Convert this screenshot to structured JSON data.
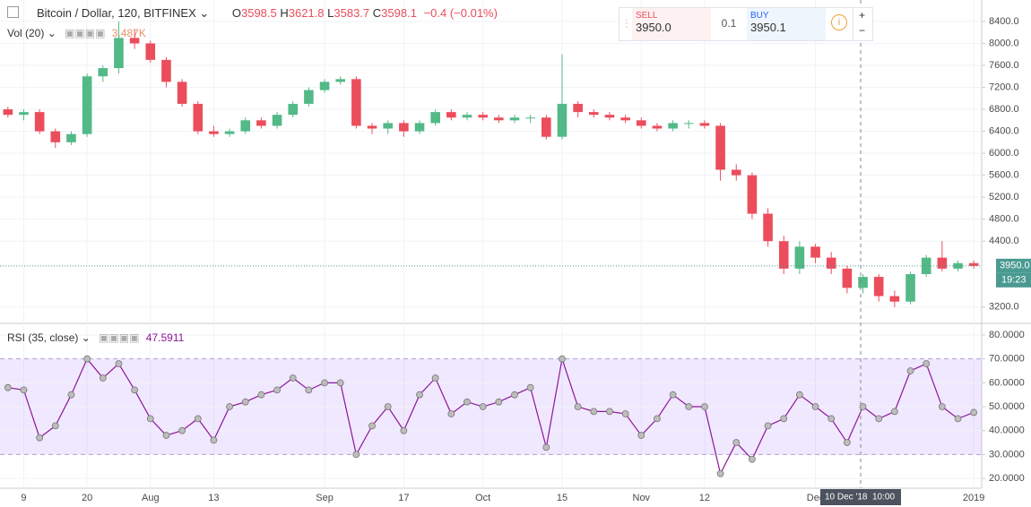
{
  "header": {
    "symbol": "Bitcoin / Dollar, 120, BITFINEX",
    "volume_label": "Vol (20)",
    "volume_value": "3.487K",
    "ohlc": [
      {
        "key": "O",
        "value": "3598.5"
      },
      {
        "key": "H",
        "value": "3621.8"
      },
      {
        "key": "L",
        "value": "3583.7"
      },
      {
        "key": "C",
        "value": "3598.1"
      }
    ],
    "change": "−0.4 (−0.01%)"
  },
  "trade_panel": {
    "sell_label": "SELL",
    "sell_price": "3950.0",
    "quantity": "0.1",
    "buy_label": "BUY",
    "buy_price": "3950.1"
  },
  "crosshair": {
    "date": "10 Dec '18",
    "time": "10:00"
  },
  "chart_data": [
    {
      "type": "candlestick",
      "up_color": "#53b987",
      "down_color": "#eb4d5c",
      "categories": [
        null,
        "9",
        null,
        null,
        null,
        "20",
        null,
        null,
        null,
        "Aug",
        null,
        null,
        null,
        "13",
        null,
        null,
        null,
        null,
        null,
        null,
        "Sep",
        null,
        null,
        null,
        null,
        "17",
        null,
        null,
        null,
        null,
        "Oct",
        null,
        null,
        null,
        null,
        "15",
        null,
        null,
        null,
        null,
        "Nov",
        null,
        null,
        null,
        "12",
        null,
        null,
        null,
        null,
        null,
        null,
        "Dec",
        null,
        null,
        null,
        null,
        null,
        null,
        null,
        null,
        null,
        "2019"
      ],
      "open": [
        6800,
        6700,
        6750,
        6400,
        6200,
        6350,
        7400,
        7550,
        8100,
        8000,
        7700,
        7300,
        6900,
        6400,
        6350,
        6400,
        6600,
        6500,
        6700,
        6900,
        7150,
        7300,
        7350,
        6500,
        6450,
        6550,
        6400,
        6550,
        6750,
        6650,
        6700,
        6650,
        6600,
        6650,
        6650,
        6300,
        6900,
        6750,
        6700,
        6650,
        6600,
        6500,
        6450,
        6550,
        6550,
        6500,
        5700,
        5600,
        4900,
        4400,
        3900,
        4300,
        4100,
        3900,
        3550,
        3750,
        3400,
        3300,
        3800,
        4100,
        3900,
        4000
      ],
      "high": [
        6850,
        6800,
        6800,
        6450,
        6400,
        7450,
        7600,
        8400,
        8250,
        8050,
        7750,
        7350,
        6950,
        6500,
        6450,
        6650,
        6650,
        6750,
        6950,
        7200,
        7350,
        7400,
        7400,
        6550,
        6600,
        6600,
        6600,
        6800,
        6800,
        6750,
        6750,
        6700,
        6700,
        6700,
        6700,
        7800,
        6950,
        6800,
        6750,
        6700,
        6650,
        6550,
        6600,
        6600,
        6600,
        6550,
        5800,
        5650,
        5000,
        4500,
        4400,
        4350,
        4200,
        3950,
        3800,
        3800,
        3500,
        3850,
        4150,
        4400,
        4050,
        4050
      ],
      "low": [
        6650,
        6600,
        6350,
        6100,
        6150,
        6300,
        7300,
        7450,
        7900,
        7650,
        7200,
        6850,
        6350,
        6300,
        6300,
        6350,
        6450,
        6450,
        6650,
        6850,
        7100,
        7250,
        6450,
        6350,
        6350,
        6300,
        6350,
        6500,
        6600,
        6600,
        6600,
        6550,
        6550,
        6550,
        6250,
        6250,
        6650,
        6650,
        6600,
        6550,
        6450,
        6400,
        6400,
        6450,
        6450,
        5500,
        5500,
        4800,
        4300,
        3800,
        3800,
        4000,
        3800,
        3450,
        3450,
        3300,
        3200,
        3250,
        3750,
        3850,
        3850,
        3900
      ],
      "close": [
        6700,
        6750,
        6400,
        6200,
        6350,
        7400,
        7550,
        8100,
        8000,
        7700,
        7300,
        6900,
        6400,
        6350,
        6400,
        6600,
        6500,
        6700,
        6900,
        7150,
        7300,
        7350,
        6500,
        6450,
        6550,
        6400,
        6550,
        6750,
        6650,
        6700,
        6650,
        6600,
        6650,
        6650,
        6300,
        6900,
        6750,
        6700,
        6650,
        6600,
        6500,
        6450,
        6550,
        6550,
        6500,
        5700,
        5600,
        4900,
        4400,
        3900,
        4300,
        4100,
        3900,
        3550,
        3750,
        3400,
        3300,
        3800,
        4100,
        3900,
        4000,
        3950
      ],
      "ylim": [
        2920,
        8790
      ],
      "yticks": [
        {
          "value": 3200,
          "label": "3200.0"
        },
        {
          "value": 4400,
          "label": "4400.0"
        },
        {
          "value": 4800,
          "label": "4800.0"
        },
        {
          "value": 5200,
          "label": "5200.0"
        },
        {
          "value": 5600,
          "label": "5600.0"
        },
        {
          "value": 6000,
          "label": "6000.0"
        },
        {
          "value": 6400,
          "label": "6400.0"
        },
        {
          "value": 6800,
          "label": "6800.0"
        },
        {
          "value": 7200,
          "label": "7200.0"
        },
        {
          "value": 7600,
          "label": "7600.0"
        },
        {
          "value": 8000,
          "label": "8000.0"
        },
        {
          "value": 8400,
          "label": "8400.0"
        }
      ],
      "price_line": {
        "value": 3950,
        "label": "3950.0",
        "countdown": "19:23",
        "color": "#4a9a91"
      },
      "grid": true
    },
    {
      "type": "line",
      "title": "RSI (35, close)",
      "series": [
        {
          "name": "RSI",
          "color": "#8e1599",
          "values": [
            58,
            57,
            37,
            42,
            55,
            70,
            62,
            68,
            57,
            45,
            38,
            40,
            45,
            36,
            50,
            52,
            55,
            57,
            62,
            57,
            60,
            60,
            30,
            42,
            50,
            40,
            55,
            62,
            47,
            52,
            50,
            52,
            55,
            58,
            33,
            70,
            50,
            48,
            48,
            47,
            38,
            45,
            55,
            50,
            50,
            22,
            35,
            28,
            42,
            45,
            55,
            50,
            45,
            35,
            50,
            45,
            48,
            65,
            68,
            50,
            45,
            47.5911
          ]
        }
      ],
      "overbought": 70,
      "oversold": 30,
      "band_color": "#9966ff",
      "ylim": [
        15.9,
        84.5
      ],
      "yticks": [
        {
          "value": 20,
          "label": "20.0000"
        },
        {
          "value": 30,
          "label": "30.0000"
        },
        {
          "value": 40,
          "label": "40.0000"
        },
        {
          "value": 50,
          "label": "50.0000"
        },
        {
          "value": 60,
          "label": "60.0000"
        },
        {
          "value": 70,
          "label": "70.0000"
        },
        {
          "value": 80,
          "label": "80.0000"
        }
      ],
      "grid": true
    }
  ]
}
